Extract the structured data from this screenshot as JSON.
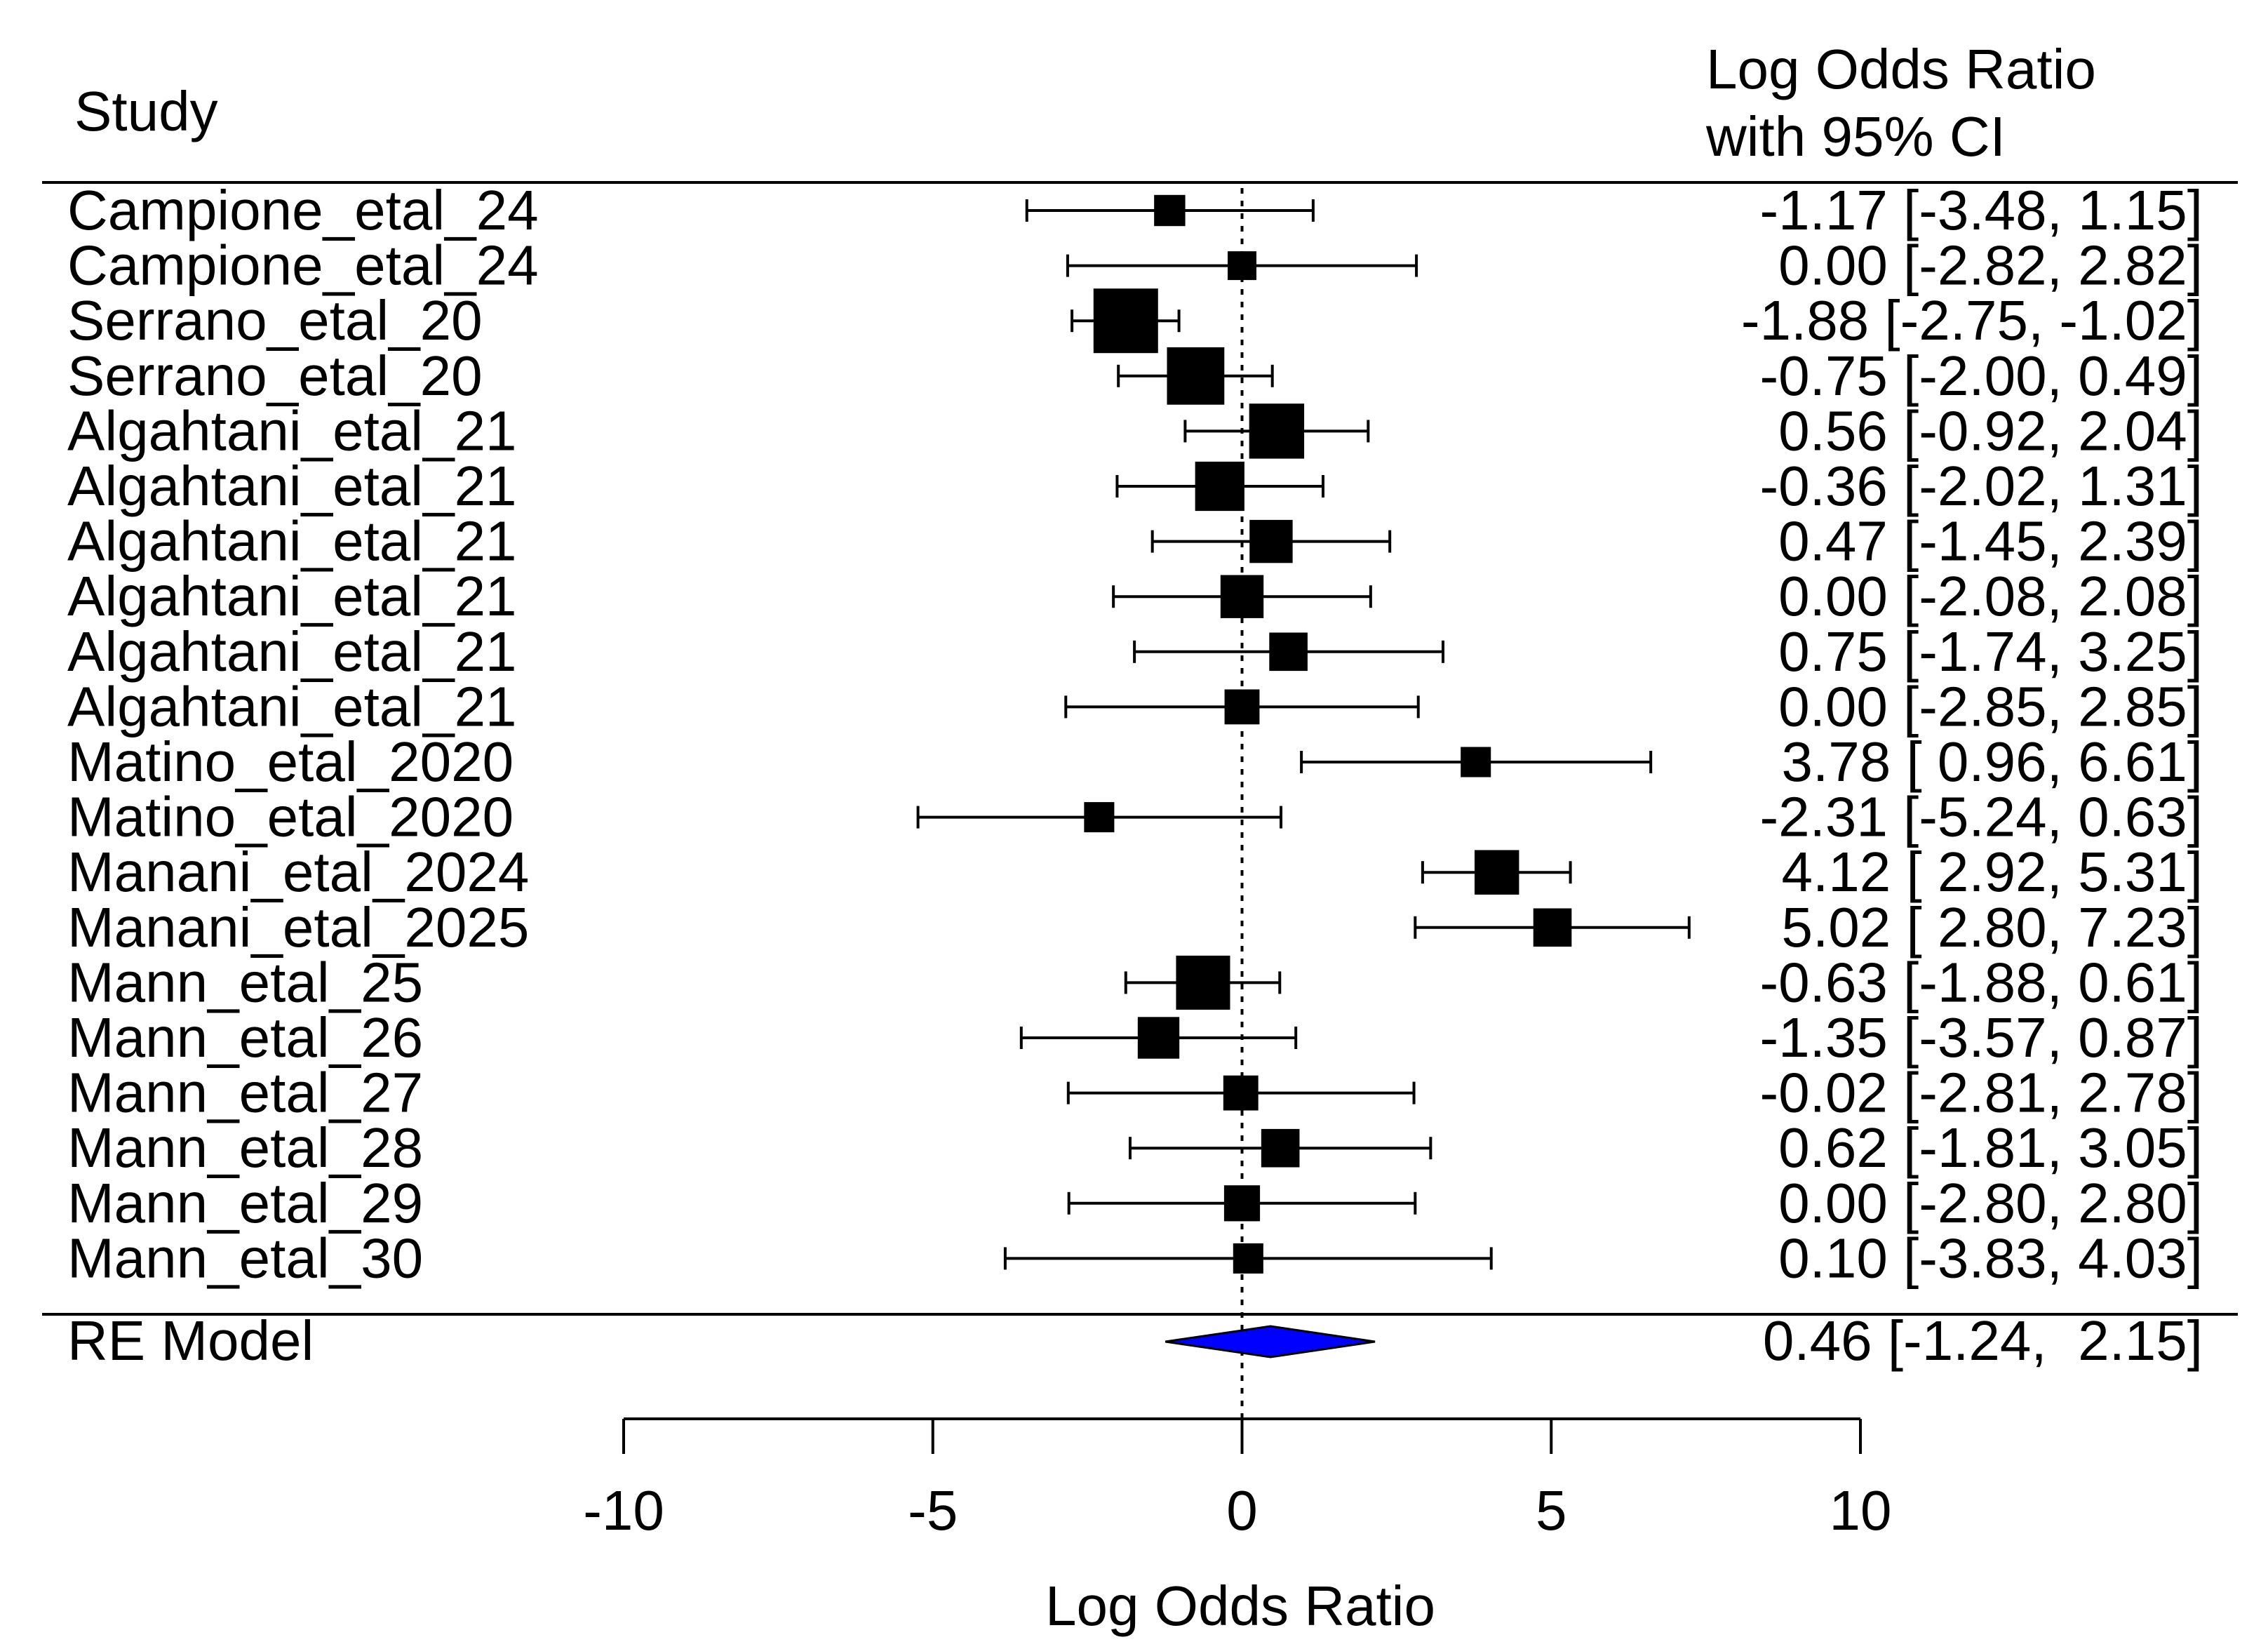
{
  "chart_data": {
    "type": "forest",
    "title": "",
    "header_left": "Study",
    "header_right_line1": "Log Odds Ratio",
    "header_right_line2": "with 95% CI",
    "xlabel": "Log Odds Ratio",
    "xlim": [
      -10,
      10
    ],
    "xticks": [
      "-10",
      "-5",
      "0",
      "5",
      "10"
    ],
    "reference_line": 0,
    "studies": [
      {
        "name": "Campione_etal_24",
        "est": -1.17,
        "lo": -3.48,
        "hi": 1.15,
        "ci_text": "-1.17 [-3.48,  1.15]",
        "weight": 0.3
      },
      {
        "name": "Campione_etal_24",
        "est": 0.0,
        "lo": -2.82,
        "hi": 2.82,
        "ci_text": "0.00 [-2.82,  2.82]",
        "weight": 0.25
      },
      {
        "name": "Serrano_etal_20",
        "est": -1.88,
        "lo": -2.75,
        "hi": -1.02,
        "ci_text": "-1.88 [-2.75, -1.02]",
        "weight": 1.0
      },
      {
        "name": "Serrano_etal_20",
        "est": -0.75,
        "lo": -2.0,
        "hi": 0.49,
        "ci_text": "-0.75 [-2.00,  0.49]",
        "weight": 0.85
      },
      {
        "name": "Algahtani_etal_21",
        "est": 0.56,
        "lo": -0.92,
        "hi": 2.04,
        "ci_text": "0.56 [-0.92,  2.04]",
        "weight": 0.8
      },
      {
        "name": "Algahtani_etal_21",
        "est": -0.36,
        "lo": -2.02,
        "hi": 1.31,
        "ci_text": "-0.36 [-2.02,  1.31]",
        "weight": 0.68
      },
      {
        "name": "Algahtani_etal_21",
        "est": 0.47,
        "lo": -1.45,
        "hi": 2.39,
        "ci_text": "0.47 [-1.45,  2.39]",
        "weight": 0.55
      },
      {
        "name": "Algahtani_etal_21",
        "est": 0.0,
        "lo": -2.08,
        "hi": 2.08,
        "ci_text": "0.00 [-2.08,  2.08]",
        "weight": 0.55
      },
      {
        "name": "Algahtani_etal_21",
        "est": 0.75,
        "lo": -1.74,
        "hi": 3.25,
        "ci_text": "0.75 [-1.74,  3.25]",
        "weight": 0.45
      },
      {
        "name": "Algahtani_etal_21",
        "est": 0.0,
        "lo": -2.85,
        "hi": 2.85,
        "ci_text": "0.00 [-2.85,  2.85]",
        "weight": 0.38
      },
      {
        "name": "Matino_etal_2020",
        "est": 3.78,
        "lo": 0.96,
        "hi": 6.61,
        "ci_text": "3.78 [ 0.96,  6.61]",
        "weight": 0.28
      },
      {
        "name": "Matino_etal_2020",
        "est": -2.31,
        "lo": -5.24,
        "hi": 0.63,
        "ci_text": "-2.31 [-5.24,  0.63]",
        "weight": 0.28
      },
      {
        "name": "Manani_etal_2024",
        "est": 4.12,
        "lo": 2.92,
        "hi": 5.31,
        "ci_text": "4.12 [ 2.92,  5.31]",
        "weight": 0.58
      },
      {
        "name": "Manani_etal_2025",
        "est": 5.02,
        "lo": 2.8,
        "hi": 7.23,
        "ci_text": "5.02 [ 2.80,  7.23]",
        "weight": 0.45
      },
      {
        "name": "Mann_etal_25",
        "est": -0.63,
        "lo": -1.88,
        "hi": 0.61,
        "ci_text": "-0.63 [-1.88,  0.61]",
        "weight": 0.78
      },
      {
        "name": "Mann_etal_26",
        "est": -1.35,
        "lo": -3.57,
        "hi": 0.87,
        "ci_text": "-1.35 [-3.57,  0.87]",
        "weight": 0.52
      },
      {
        "name": "Mann_etal_27",
        "est": -0.02,
        "lo": -2.81,
        "hi": 2.78,
        "ci_text": "-0.02 [-2.81,  2.78]",
        "weight": 0.38
      },
      {
        "name": "Mann_etal_28",
        "est": 0.62,
        "lo": -1.81,
        "hi": 3.05,
        "ci_text": "0.62 [-1.81,  3.05]",
        "weight": 0.45
      },
      {
        "name": "Mann_etal_29",
        "est": 0.0,
        "lo": -2.8,
        "hi": 2.8,
        "ci_text": "0.00 [-2.80,  2.80]",
        "weight": 0.4
      },
      {
        "name": "Mann_etal_30",
        "est": 0.1,
        "lo": -3.83,
        "hi": 4.03,
        "ci_text": "0.10 [-3.83,  4.03]",
        "weight": 0.28
      }
    ],
    "summary": {
      "name": "RE Model",
      "est": 0.46,
      "lo": -1.24,
      "hi": 2.15,
      "ci_text": "0.46 [-1.24,  2.15]"
    },
    "colors": {
      "ink": "#000000",
      "summary_fill": "#0000ff"
    }
  }
}
